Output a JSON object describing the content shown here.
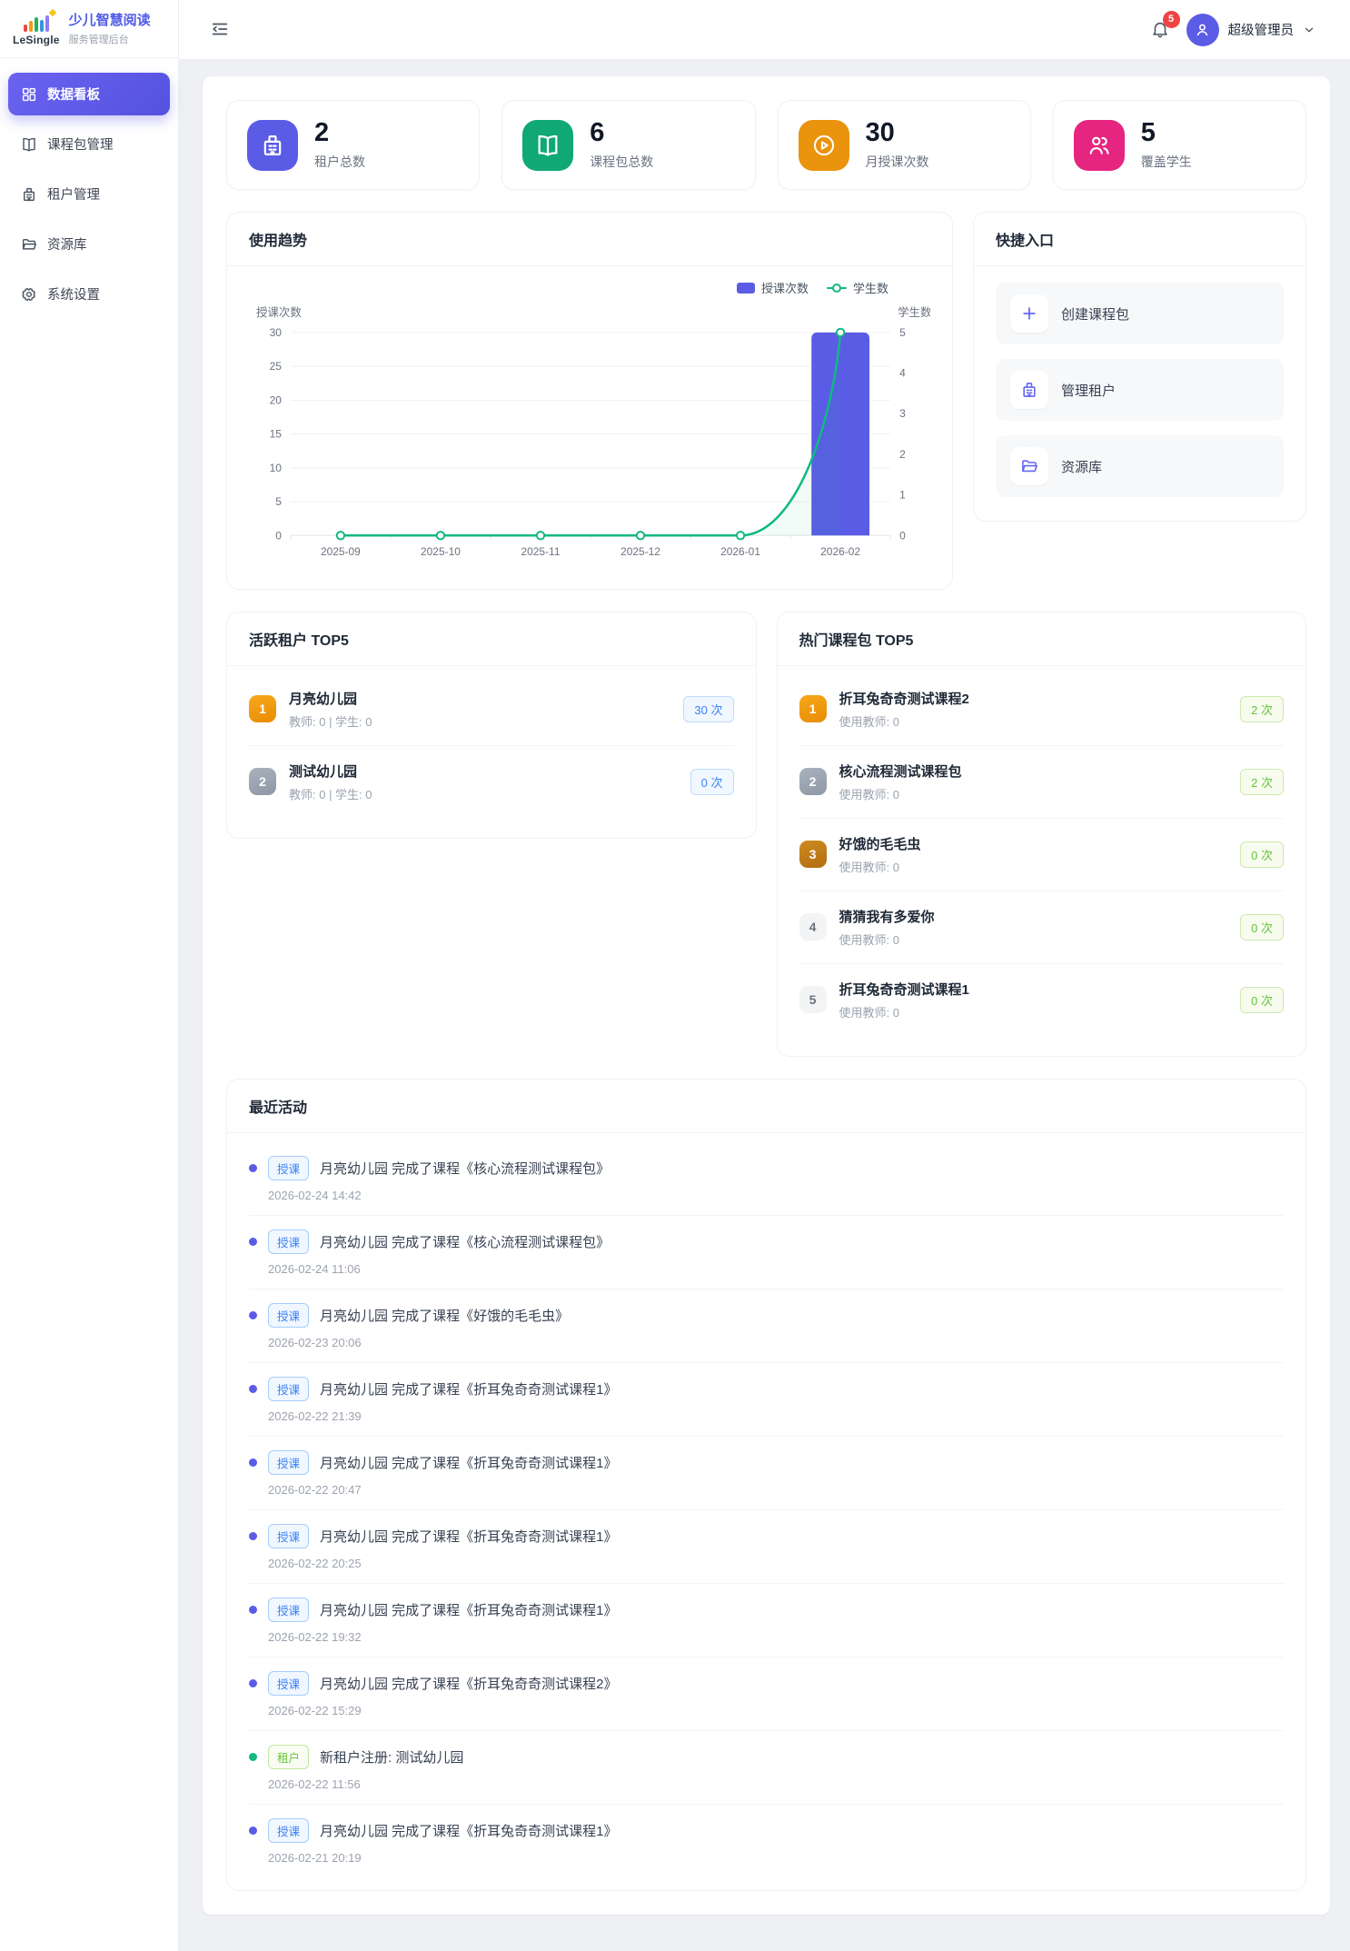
{
  "app": {
    "logo_text": "LeSingle",
    "title": "少儿智慧阅读",
    "subtitle": "服务管理后台"
  },
  "header": {
    "notification_count": "5",
    "user_name": "超级管理员"
  },
  "sidebar": {
    "items": [
      {
        "label": "数据看板",
        "icon": "dashboard-icon",
        "active": true
      },
      {
        "label": "课程包管理",
        "icon": "book-icon"
      },
      {
        "label": "租户管理",
        "icon": "building-icon"
      },
      {
        "label": "资源库",
        "icon": "folder-icon"
      },
      {
        "label": "系统设置",
        "icon": "gear-icon"
      }
    ]
  },
  "stats": [
    {
      "value": "2",
      "label": "租户总数",
      "icon": "building-icon",
      "color": "#5b5ce6"
    },
    {
      "value": "6",
      "label": "课程包总数",
      "icon": "book-icon",
      "color": "#10a875"
    },
    {
      "value": "30",
      "label": "月授课次数",
      "icon": "play-circle-icon",
      "color": "#ea930c"
    },
    {
      "value": "5",
      "label": "覆盖学生",
      "icon": "students-icon",
      "color": "#e5257f"
    }
  ],
  "usage_trend": {
    "title": "使用趋势"
  },
  "chart_data": {
    "type": "bar+line",
    "title": "使用趋势",
    "categories": [
      "2025-09",
      "2025-10",
      "2025-11",
      "2025-12",
      "2026-01",
      "2026-02"
    ],
    "series": [
      {
        "name": "授课次数",
        "type": "bar",
        "axis": "left",
        "values": [
          0,
          0,
          0,
          0,
          0,
          30
        ],
        "color": "#5b5ce6"
      },
      {
        "name": "学生数",
        "type": "line",
        "axis": "right",
        "values": [
          0,
          0,
          0,
          0,
          0,
          5
        ],
        "color": "#10b981"
      }
    ],
    "left_axis": {
      "name": "授课次数",
      "min": 0,
      "max": 30,
      "ticks": [
        0,
        5,
        10,
        15,
        20,
        25,
        30
      ]
    },
    "right_axis": {
      "name": "学生数",
      "min": 0,
      "max": 5,
      "ticks": [
        0,
        1,
        2,
        3,
        4,
        5
      ]
    },
    "grid": true,
    "legend_position": "top-right"
  },
  "quick_entry": {
    "title": "快捷入口",
    "items": [
      {
        "label": "创建课程包",
        "icon": "plus-icon"
      },
      {
        "label": "管理租户",
        "icon": "building-icon"
      },
      {
        "label": "资源库",
        "icon": "folder-icon"
      }
    ]
  },
  "active_tenants": {
    "title": "活跃租户 TOP5",
    "items": [
      {
        "rank": "1",
        "name": "月亮幼儿园",
        "meta": "教师: 0 | 学生: 0",
        "badge": "30 次"
      },
      {
        "rank": "2",
        "name": "测试幼儿园",
        "meta": "教师: 0 | 学生: 0",
        "badge": "0 次"
      }
    ]
  },
  "hot_packages": {
    "title": "热门课程包 TOP5",
    "items": [
      {
        "rank": "1",
        "name": "折耳兔奇奇测试课程2",
        "meta": "使用教师: 0",
        "badge": "2 次"
      },
      {
        "rank": "2",
        "name": "核心流程测试课程包",
        "meta": "使用教师: 0",
        "badge": "2 次"
      },
      {
        "rank": "3",
        "name": "好饿的毛毛虫",
        "meta": "使用教师: 0",
        "badge": "0 次"
      },
      {
        "rank": "4",
        "name": "猜猜我有多爱你",
        "meta": "使用教师: 0",
        "badge": "0 次"
      },
      {
        "rank": "5",
        "name": "折耳兔奇奇测试课程1",
        "meta": "使用教师: 0",
        "badge": "0 次"
      }
    ]
  },
  "activities": {
    "title": "最近活动",
    "items": [
      {
        "type": "class",
        "tag": "授课",
        "text": "月亮幼儿园 完成了课程《核心流程测试课程包》",
        "time": "2026-02-24 14:42"
      },
      {
        "type": "class",
        "tag": "授课",
        "text": "月亮幼儿园 完成了课程《核心流程测试课程包》",
        "time": "2026-02-24 11:06"
      },
      {
        "type": "class",
        "tag": "授课",
        "text": "月亮幼儿园 完成了课程《好饿的毛毛虫》",
        "time": "2026-02-23 20:06"
      },
      {
        "type": "class",
        "tag": "授课",
        "text": "月亮幼儿园 完成了课程《折耳兔奇奇测试课程1》",
        "time": "2026-02-22 21:39"
      },
      {
        "type": "class",
        "tag": "授课",
        "text": "月亮幼儿园 完成了课程《折耳兔奇奇测试课程1》",
        "time": "2026-02-22 20:47"
      },
      {
        "type": "class",
        "tag": "授课",
        "text": "月亮幼儿园 完成了课程《折耳兔奇奇测试课程1》",
        "time": "2026-02-22 20:25"
      },
      {
        "type": "class",
        "tag": "授课",
        "text": "月亮幼儿园 完成了课程《折耳兔奇奇测试课程1》",
        "time": "2026-02-22 19:32"
      },
      {
        "type": "class",
        "tag": "授课",
        "text": "月亮幼儿园 完成了课程《折耳兔奇奇测试课程2》",
        "time": "2026-02-22 15:29"
      },
      {
        "type": "tenant",
        "tag": "租户",
        "text": "新租户注册: 测试幼儿园",
        "time": "2026-02-22 11:56"
      },
      {
        "type": "class",
        "tag": "授课",
        "text": "月亮幼儿园 完成了课程《折耳兔奇奇测试课程1》",
        "time": "2026-02-21 20:19"
      }
    ]
  }
}
